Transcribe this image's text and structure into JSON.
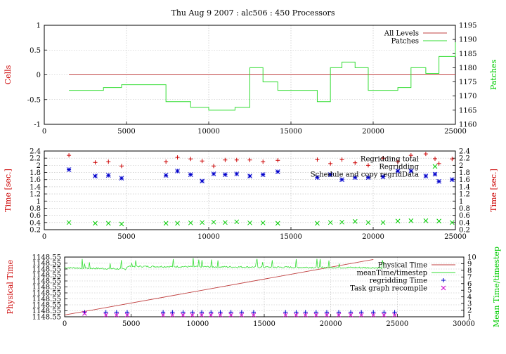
{
  "figure": {
    "title": "Thu Aug 9 2007 : alc506 : 450 Processors"
  },
  "colors": {
    "red": "#cc0000",
    "green": "#00cc00",
    "blue": "#0000cc",
    "magenta": "#cc00cc",
    "grid": "#bbbbbb",
    "line_red": "#c04040",
    "line_green": "#33dd33"
  },
  "chart_data": [
    {
      "type": "line",
      "ylabel": "Cells",
      "y2label": "Patches",
      "xlim": [
        0,
        25000
      ],
      "ylim": [
        -1,
        1
      ],
      "y2lim": [
        1160,
        1195
      ],
      "xticks": [
        0,
        5000,
        10000,
        15000,
        20000,
        25000
      ],
      "yticks": [
        -1,
        -0.5,
        0,
        0.5,
        1
      ],
      "y2ticks": [
        1160,
        1165,
        1170,
        1175,
        1180,
        1185,
        1190,
        1195
      ],
      "grid": true,
      "legend_position": "top-right",
      "series": [
        {
          "name": "All Levels",
          "axis": "y",
          "color": "#c04040",
          "style": "line",
          "x": [
            1500,
            25000
          ],
          "y": [
            0,
            0
          ]
        },
        {
          "name": "Patches",
          "axis": "y2",
          "color": "#33dd33",
          "style": "step",
          "x": [
            1500,
            3100,
            3600,
            4700,
            7400,
            8100,
            8900,
            10000,
            10700,
            11600,
            12500,
            13300,
            14200,
            16600,
            17400,
            18100,
            18900,
            19700,
            20600,
            21500,
            22300,
            23200,
            24000,
            25000
          ],
          "y": [
            1172,
            1172,
            1173,
            1174,
            1168,
            1168,
            1166,
            1165,
            1165,
            1166,
            1180,
            1175,
            1172,
            1168,
            1180,
            1182,
            1180,
            1172,
            1172,
            1173,
            1180,
            1178,
            1184,
            1189
          ]
        }
      ]
    },
    {
      "type": "scatter",
      "ylabel": "Time [sec.]",
      "xlim": [
        0,
        25000
      ],
      "ylim": [
        0.2,
        2.4
      ],
      "yticks": [
        0.2,
        0.4,
        0.6,
        0.8,
        1,
        1.2,
        1.4,
        1.6,
        1.8,
        2,
        2.2,
        2.4
      ],
      "xticks": [
        0,
        5000,
        10000,
        15000,
        20000,
        25000
      ],
      "grid": true,
      "legend_position": "top-right",
      "series": [
        {
          "name": "Regridding total",
          "marker": "+",
          "color": "#cc0000",
          "x": [
            1500,
            3100,
            3900,
            4700,
            7400,
            8100,
            8900,
            9600,
            10300,
            11000,
            11700,
            12500,
            13300,
            14200,
            16600,
            17400,
            18100,
            18900,
            19700,
            20600,
            21500,
            22300,
            23200,
            24000,
            24800
          ],
          "y": [
            2.28,
            2.08,
            2.1,
            1.98,
            2.1,
            2.22,
            2.18,
            2.12,
            1.98,
            2.15,
            2.15,
            2.15,
            2.1,
            2.14,
            2.16,
            2.05,
            2.16,
            2.07,
            2.0,
            2.2,
            2.1,
            2.28,
            2.32,
            2.05,
            2.18
          ]
        },
        {
          "name": "Regridding",
          "marker": "x",
          "color": "#00cc00",
          "x": [
            1500,
            3100,
            3900,
            4700,
            7400,
            8100,
            8900,
            9600,
            10300,
            11000,
            11700,
            12500,
            13300,
            14200,
            16600,
            17400,
            18100,
            18900,
            19700,
            20600,
            21500,
            22300,
            23200,
            24000,
            24800
          ],
          "y": [
            0.4,
            0.38,
            0.38,
            0.36,
            0.38,
            0.38,
            0.39,
            0.4,
            0.41,
            0.4,
            0.42,
            0.39,
            0.39,
            0.38,
            0.38,
            0.4,
            0.41,
            0.43,
            0.4,
            0.4,
            0.44,
            0.45,
            0.45,
            0.44,
            0.4
          ]
        },
        {
          "name": "Schedule and copy regridData",
          "marker": "*",
          "color": "#0000cc",
          "x": [
            1500,
            3100,
            3900,
            4700,
            7400,
            8100,
            8900,
            9600,
            10300,
            11000,
            11700,
            12500,
            13300,
            14200,
            16600,
            17400,
            18100,
            18900,
            19700,
            20600,
            21500,
            22300,
            23200,
            24000,
            24800
          ],
          "y": [
            1.88,
            1.7,
            1.72,
            1.64,
            1.72,
            1.84,
            1.74,
            1.56,
            1.76,
            1.74,
            1.76,
            1.7,
            1.74,
            1.82,
            1.66,
            1.74,
            1.6,
            1.66,
            1.66,
            1.68,
            1.84,
            1.84,
            1.7,
            1.55,
            1.6
          ]
        }
      ]
    },
    {
      "type": "line",
      "ylabel": "Physical Time",
      "y2label": "Mean Time/timestep",
      "xlim": [
        0,
        30000
      ],
      "ylim": [
        0,
        10
      ],
      "xticks": [
        0,
        5000,
        10000,
        15000,
        20000,
        25000,
        30000
      ],
      "ytick_label": "1148.55",
      "ytick_count": 11,
      "y2lim": [
        1,
        10
      ],
      "y2ticks": [
        1,
        2,
        3,
        4,
        5,
        6,
        7,
        8,
        9,
        10
      ],
      "grid": true,
      "legend_position": "top-right",
      "series": [
        {
          "name": "Physical Time",
          "axis": "y",
          "color": "#c04040",
          "style": "line",
          "x": [
            0,
            23200
          ],
          "y": [
            0.3,
            9.6
          ]
        },
        {
          "name": "meanTime/timestep",
          "axis": "y2",
          "color": "#33dd33",
          "style": "noisy",
          "x": [
            0,
            4600,
            4700,
            23500,
            24000
          ],
          "y": [
            8.4,
            8.2,
            8.6,
            8.4,
            8.3
          ]
        },
        {
          "name": "regridding Time",
          "marker": "+",
          "color": "#0000cc",
          "axis": "y2",
          "x": [
            1500,
            3100,
            3900,
            4700,
            7400,
            8100,
            8900,
            9600,
            10300,
            11000,
            11700,
            12500,
            13300,
            14200,
            16600,
            17400,
            18100,
            18900,
            19700,
            20600,
            21500,
            22300,
            23200,
            24000,
            24800
          ],
          "y": [
            1.7,
            1.7,
            1.7,
            1.7,
            1.7,
            1.7,
            1.7,
            1.7,
            1.7,
            1.7,
            1.7,
            1.7,
            1.7,
            1.7,
            1.7,
            1.7,
            1.7,
            1.7,
            1.7,
            1.7,
            1.7,
            1.7,
            1.7,
            1.7,
            1.7
          ]
        },
        {
          "name": "Task graph recompile",
          "marker": "x",
          "color": "#cc00cc",
          "axis": "y2",
          "x": [
            1500,
            3100,
            3900,
            4700,
            7400,
            8100,
            8900,
            9600,
            10300,
            11000,
            11700,
            12500,
            13300,
            14200,
            16600,
            17400,
            18100,
            18900,
            19700,
            20600,
            21500,
            22300,
            23200,
            24000,
            24800
          ],
          "y": [
            1.5,
            1.25,
            1.25,
            1.25,
            1.25,
            1.25,
            1.25,
            1.25,
            1.25,
            1.25,
            1.25,
            1.25,
            1.25,
            1.25,
            1.25,
            1.25,
            1.25,
            1.25,
            1.25,
            1.25,
            1.25,
            1.25,
            1.25,
            1.25,
            1.25
          ]
        }
      ]
    }
  ]
}
